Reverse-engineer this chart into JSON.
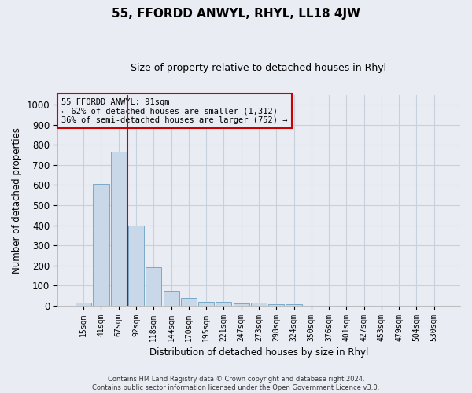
{
  "title": "55, FFORDD ANWYL, RHYL, LL18 4JW",
  "subtitle": "Size of property relative to detached houses in Rhyl",
  "xlabel": "Distribution of detached houses by size in Rhyl",
  "ylabel": "Number of detached properties",
  "footer_line1": "Contains HM Land Registry data © Crown copyright and database right 2024.",
  "footer_line2": "Contains public sector information licensed under the Open Government Licence v3.0.",
  "categories": [
    "15sqm",
    "41sqm",
    "67sqm",
    "92sqm",
    "118sqm",
    "144sqm",
    "170sqm",
    "195sqm",
    "221sqm",
    "247sqm",
    "273sqm",
    "298sqm",
    "324sqm",
    "350sqm",
    "376sqm",
    "401sqm",
    "427sqm",
    "453sqm",
    "479sqm",
    "504sqm",
    "530sqm"
  ],
  "bar_heights": [
    15,
    605,
    765,
    400,
    190,
    75,
    38,
    17,
    17,
    10,
    13,
    8,
    8,
    0,
    0,
    0,
    0,
    0,
    0,
    0,
    0
  ],
  "bar_color": "#c8d8e8",
  "bar_edgecolor": "#7aaac8",
  "ylim": [
    0,
    1050
  ],
  "yticks": [
    0,
    100,
    200,
    300,
    400,
    500,
    600,
    700,
    800,
    900,
    1000
  ],
  "property_line_color": "#cc0000",
  "annotation_text_line1": "55 FFORDD ANWYL: 91sqm",
  "annotation_text_line2": "← 62% of detached houses are smaller (1,312)",
  "annotation_text_line3": "36% of semi-detached houses are larger (752) →",
  "annotation_box_color": "#cc0000",
  "grid_color": "#c8d0dc",
  "background_color": "#eaecf4",
  "figsize": [
    6.0,
    5.0
  ],
  "dpi": 100
}
